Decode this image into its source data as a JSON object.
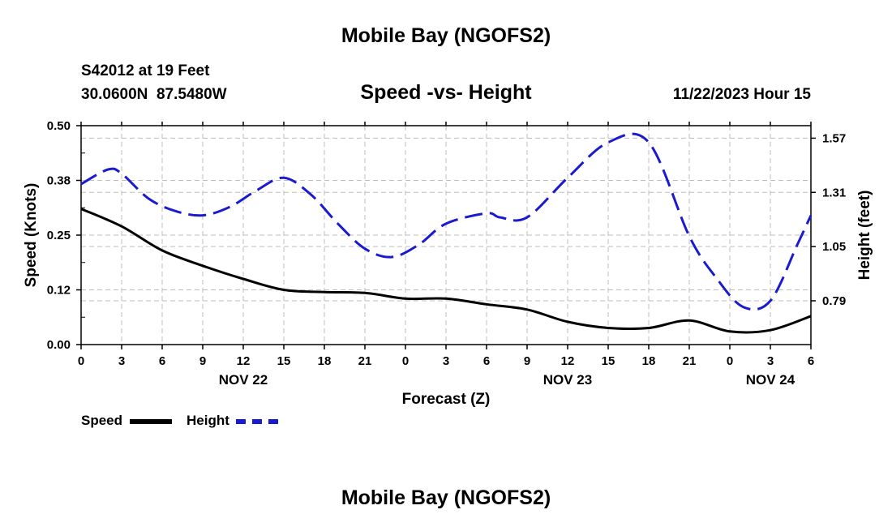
{
  "page_title": "Mobile Bay (NGOFS2)",
  "station": {
    "line1": "S42012 at 19 Feet",
    "line2": "30.0600N  87.5480W"
  },
  "valid_time": "11/22/2023 Hour 15",
  "footer_title": "Mobile Bay (NGOFS2)",
  "legend": {
    "speed_label": "Speed",
    "height_label": "Height"
  },
  "colors": {
    "speed": "#000000",
    "height": "#1a1ad0",
    "grid": "#bdbdbd"
  },
  "chart_data": {
    "type": "line",
    "title": "Speed -vs- Height",
    "xlabel": "Forecast (Z)",
    "ylabel_left": "Speed (Knots)",
    "ylabel_right": "Height (feet)",
    "x_unit": "hours from Nov 22 00Z",
    "xlim": [
      0,
      54
    ],
    "ylim_left": [
      0,
      0.5
    ],
    "ylim_right": [
      0.58,
      1.63
    ],
    "x_ticks": [
      0,
      3,
      6,
      9,
      12,
      15,
      18,
      21,
      24,
      27,
      30,
      33,
      36,
      39,
      42,
      45,
      48,
      51,
      54
    ],
    "x_tick_labels": [
      "0",
      "3",
      "6",
      "9",
      "12",
      "15",
      "18",
      "21",
      "0",
      "3",
      "6",
      "9",
      "12",
      "15",
      "18",
      "21",
      "0",
      "3",
      "6"
    ],
    "date_labels": [
      {
        "x": 12,
        "label": "NOV 22"
      },
      {
        "x": 36,
        "label": "NOV 23"
      },
      {
        "x": 51,
        "label": "NOV 24"
      }
    ],
    "left_ticks": [
      0.0,
      0.125,
      0.25,
      0.375,
      0.5
    ],
    "left_tick_labels": [
      "0.00",
      "0.12",
      "0.25",
      "0.38",
      "0.50"
    ],
    "right_ticks": [
      0.79,
      1.05,
      1.31,
      1.57
    ],
    "right_tick_labels": [
      "0.79",
      "1.05",
      "1.31",
      "1.57"
    ],
    "grid": true,
    "series": [
      {
        "name": "Speed",
        "axis": "left",
        "style": "solid",
        "x": [
          0,
          3,
          6,
          9,
          12,
          15,
          18,
          21,
          24,
          27,
          30,
          33,
          36,
          39,
          42,
          45,
          48,
          51,
          54
        ],
        "y": [
          0.31,
          0.27,
          0.215,
          0.18,
          0.15,
          0.125,
          0.12,
          0.118,
          0.105,
          0.105,
          0.092,
          0.08,
          0.052,
          0.038,
          0.038,
          0.055,
          0.03,
          0.033,
          0.065
        ]
      },
      {
        "name": "Height",
        "axis": "right",
        "style": "dashed",
        "x": [
          0,
          2,
          3,
          5,
          7,
          9,
          11,
          13,
          15,
          17,
          19,
          21,
          23,
          25,
          27,
          30,
          31,
          33,
          36,
          39,
          42,
          45,
          47,
          49,
          51,
          53,
          54
        ],
        "y": [
          1.35,
          1.42,
          1.4,
          1.28,
          1.22,
          1.2,
          1.24,
          1.32,
          1.38,
          1.3,
          1.16,
          1.04,
          1.0,
          1.06,
          1.16,
          1.21,
          1.19,
          1.19,
          1.38,
          1.55,
          1.55,
          1.1,
          0.9,
          0.76,
          0.79,
          1.06,
          1.2
        ]
      }
    ]
  }
}
